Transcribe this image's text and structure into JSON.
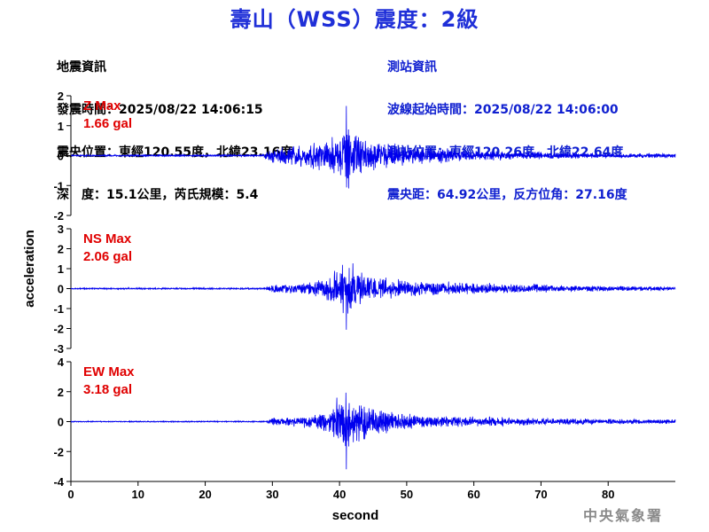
{
  "title": "壽山（WSS）震度：2級",
  "earthquake_info": {
    "heading": "地震資訊",
    "origin_time": "發震時間：2025/08/22 14:06:15",
    "epicenter": "震央位置：東經120.55度，北緯23.16度",
    "depth_magnitude": "深　度：15.1公里，芮氏規模：5.4"
  },
  "station_info": {
    "heading": "測站資訊",
    "wave_start": "波線起始時間：2025/08/22 14:06:00",
    "station_location": "測站位置：東經120.26度，北緯22.64度",
    "distance_azimuth": "震央距：64.92公里，反方位角：27.16度"
  },
  "agency": "中央氣象署",
  "colors": {
    "trace": "#0000ee",
    "max_label": "#e00000",
    "title": "#1f2fd8",
    "station_info": "#1020d0"
  },
  "chart_data": {
    "type": "line",
    "xlabel": "second",
    "ylabel": "acceleration",
    "xlim": [
      0,
      90
    ],
    "x_ticks": [
      0,
      10,
      20,
      30,
      40,
      50,
      60,
      70,
      80
    ],
    "panels": [
      {
        "name": "Z Max",
        "max_value": "1.66 gal",
        "ylim": [
          -2,
          2
        ],
        "y_ticks": [
          -2,
          -1,
          0,
          1,
          2
        ],
        "envelope": [
          [
            0,
            0.04
          ],
          [
            28.5,
            0.05
          ],
          [
            29.5,
            0.35
          ],
          [
            32,
            0.45
          ],
          [
            35,
            0.55
          ],
          [
            38,
            0.75
          ],
          [
            40,
            0.9
          ],
          [
            41,
            1.66
          ],
          [
            42,
            1.2
          ],
          [
            44,
            0.9
          ],
          [
            47,
            0.6
          ],
          [
            50,
            0.45
          ],
          [
            55,
            0.35
          ],
          [
            60,
            0.25
          ],
          [
            70,
            0.18
          ],
          [
            80,
            0.12
          ],
          [
            90,
            0.1
          ]
        ]
      },
      {
        "name": "NS Max",
        "max_value": "2.06 gal",
        "ylim": [
          -3,
          3
        ],
        "y_ticks": [
          -3,
          -2,
          -1,
          0,
          1,
          2,
          3
        ],
        "envelope": [
          [
            0,
            0.05
          ],
          [
            29,
            0.06
          ],
          [
            30,
            0.3
          ],
          [
            35,
            0.45
          ],
          [
            38,
            0.8
          ],
          [
            40,
            1.6
          ],
          [
            41,
            2.06
          ],
          [
            43,
            1.5
          ],
          [
            45,
            0.9
          ],
          [
            48,
            0.7
          ],
          [
            52,
            0.55
          ],
          [
            58,
            0.45
          ],
          [
            65,
            0.35
          ],
          [
            75,
            0.25
          ],
          [
            90,
            0.15
          ]
        ]
      },
      {
        "name": "EW Max",
        "max_value": "3.18 gal",
        "ylim": [
          -4,
          4
        ],
        "y_ticks": [
          -4,
          -2,
          0,
          2,
          4
        ],
        "envelope": [
          [
            0,
            0.05
          ],
          [
            29,
            0.06
          ],
          [
            30,
            0.35
          ],
          [
            34,
            0.5
          ],
          [
            38,
            0.9
          ],
          [
            40,
            2.3
          ],
          [
            41,
            3.18
          ],
          [
            43,
            2.2
          ],
          [
            45,
            1.3
          ],
          [
            48,
            0.9
          ],
          [
            52,
            0.6
          ],
          [
            58,
            0.5
          ],
          [
            65,
            0.4
          ],
          [
            75,
            0.3
          ],
          [
            90,
            0.2
          ]
        ]
      }
    ]
  }
}
